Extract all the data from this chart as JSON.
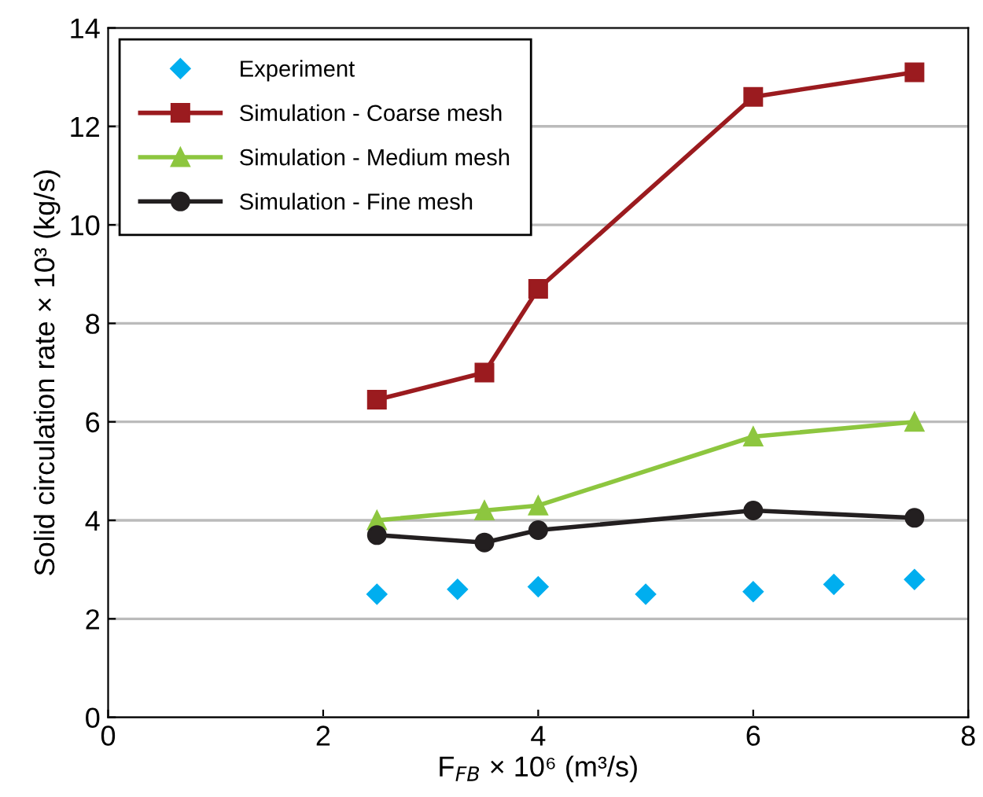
{
  "chart_data": {
    "type": "line",
    "xlabel": "F$_{FB}$ × 10⁶ (m³/s)",
    "ylabel": "Solid circulation rate × 10³ (kg/s)",
    "xlim": [
      0,
      8
    ],
    "xticks": [
      0,
      2,
      4,
      6,
      8
    ],
    "ylim": [
      0,
      14
    ],
    "yticks": [
      0,
      2,
      4,
      6,
      8,
      10,
      12,
      14
    ],
    "grid": "y",
    "legend": "top left",
    "series": [
      {
        "name": "Experiment",
        "type": "scatter",
        "marker": "diamond",
        "color": "#00aeef",
        "x": [
          2.5,
          3.25,
          4,
          5,
          6,
          6.75,
          7.5
        ],
        "values": [
          2.5,
          2.6,
          2.65,
          2.5,
          2.55,
          2.7,
          2.8
        ]
      },
      {
        "name": "Simulation - Coarse mesh",
        "marker": "square",
        "color": "#9b1b1f",
        "x": [
          2.5,
          3.5,
          4,
          6,
          7.5
        ],
        "values": [
          6.45,
          7.0,
          8.7,
          12.6,
          13.1
        ]
      },
      {
        "name": "Simulation - Medium mesh",
        "marker": "triangle",
        "color": "#8dc63f",
        "x": [
          2.5,
          3.5,
          4,
          6,
          7.5
        ],
        "values": [
          4.0,
          4.2,
          4.3,
          5.7,
          6.0
        ]
      },
      {
        "name": "Simulation - Fine mesh",
        "marker": "circle",
        "color": "#231f20",
        "x": [
          2.5,
          3.5,
          4,
          6,
          7.5
        ],
        "values": [
          3.7,
          3.55,
          3.8,
          4.2,
          4.05
        ]
      }
    ]
  }
}
